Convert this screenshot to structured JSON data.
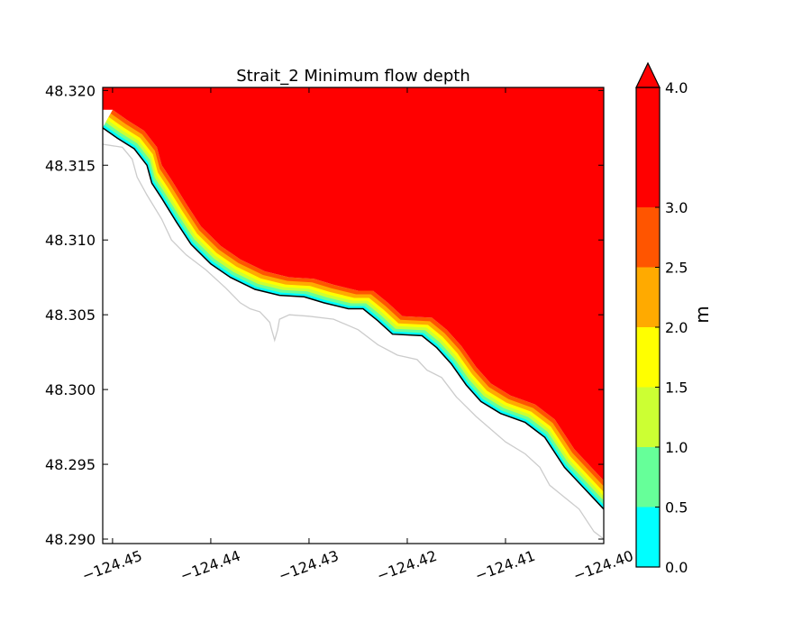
{
  "title": "Strait_2 Minimum flow depth",
  "colorbar": {
    "label": "m",
    "ticks": [
      "0.0",
      "0.5",
      "1.0",
      "1.5",
      "2.0",
      "2.5",
      "3.0",
      "4.0"
    ],
    "bins": [
      {
        "from": 0.0,
        "to": 0.5,
        "color": "#00ffff"
      },
      {
        "from": 0.5,
        "to": 1.0,
        "color": "#66ff99"
      },
      {
        "from": 1.0,
        "to": 1.5,
        "color": "#ccff33"
      },
      {
        "from": 1.5,
        "to": 2.0,
        "color": "#ffff00"
      },
      {
        "from": 2.0,
        "to": 2.5,
        "color": "#ffaa00"
      },
      {
        "from": 2.5,
        "to": 3.0,
        "color": "#ff5500"
      },
      {
        "from": 3.0,
        "to": 4.0,
        "color": "#ff0000"
      }
    ],
    "extend": "max",
    "extend_color": "#ff0000"
  },
  "colors": {
    "deep_water": "#ff0000",
    "coastline": "#000000",
    "shore_contour": "#cccccc",
    "land": "#ffffff"
  },
  "chart_data": {
    "type": "heatmap",
    "x_ticks": [
      "−124.45",
      "−124.44",
      "−124.43",
      "−124.42",
      "−124.41",
      "−124.40"
    ],
    "y_ticks": [
      "48.320",
      "48.315",
      "48.310",
      "48.305",
      "48.300",
      "48.295",
      "48.290"
    ],
    "xlim": [
      -124.451,
      -124.4
    ],
    "ylim": [
      48.2897,
      48.3202
    ],
    "x_tick_values": [
      -124.45,
      -124.44,
      -124.43,
      -124.42,
      -124.41,
      -124.4
    ],
    "y_tick_values": [
      48.32,
      48.315,
      48.31,
      48.305,
      48.3,
      48.295,
      48.29
    ],
    "field": "Minimum flow depth (m)",
    "coastline": [
      [
        -124.451,
        48.3175
      ],
      [
        -124.4495,
        48.3168
      ],
      [
        -124.4478,
        48.3161
      ],
      [
        -124.4465,
        48.315
      ],
      [
        -124.446,
        48.3138
      ],
      [
        -124.445,
        48.3128
      ],
      [
        -124.4435,
        48.3112
      ],
      [
        -124.442,
        48.3097
      ],
      [
        -124.44,
        48.3084
      ],
      [
        -124.438,
        48.3075
      ],
      [
        -124.4355,
        48.3067
      ],
      [
        -124.433,
        48.3063
      ],
      [
        -124.4305,
        48.3062
      ],
      [
        -124.4285,
        48.3058
      ],
      [
        -124.426,
        48.3054
      ],
      [
        -124.4245,
        48.3054
      ],
      [
        -124.423,
        48.3046
      ],
      [
        -124.4215,
        48.3037
      ],
      [
        -124.4185,
        48.3036
      ],
      [
        -124.417,
        48.3028
      ],
      [
        -124.4155,
        48.3017
      ],
      [
        -124.414,
        48.3003
      ],
      [
        -124.4125,
        48.2992
      ],
      [
        -124.4105,
        48.2984
      ],
      [
        -124.408,
        48.2978
      ],
      [
        -124.406,
        48.2968
      ],
      [
        -124.404,
        48.2948
      ],
      [
        -124.402,
        48.2934
      ],
      [
        -124.401,
        48.2927
      ],
      [
        -124.4,
        48.292
      ]
    ],
    "shore_contour": [
      [
        -124.451,
        48.3164
      ],
      [
        -124.449,
        48.3162
      ],
      [
        -124.448,
        48.3154
      ],
      [
        -124.4475,
        48.3142
      ],
      [
        -124.4465,
        48.313
      ],
      [
        -124.445,
        48.3114
      ],
      [
        -124.444,
        48.31
      ],
      [
        -124.4425,
        48.309
      ],
      [
        -124.4405,
        48.308
      ],
      [
        -124.4385,
        48.3068
      ],
      [
        -124.437,
        48.3058
      ],
      [
        -124.436,
        48.3054
      ],
      [
        -124.435,
        48.3052
      ],
      [
        -124.434,
        48.3045
      ],
      [
        -124.4338,
        48.304
      ],
      [
        -124.4335,
        48.3033
      ],
      [
        -124.4332,
        48.304
      ],
      [
        -124.433,
        48.3047
      ],
      [
        -124.432,
        48.305
      ],
      [
        -124.43,
        48.3049
      ],
      [
        -124.4275,
        48.3047
      ],
      [
        -124.425,
        48.304
      ],
      [
        -124.423,
        48.303
      ],
      [
        -124.421,
        48.3023
      ],
      [
        -124.419,
        48.302
      ],
      [
        -124.418,
        48.3013
      ],
      [
        -124.4165,
        48.3008
      ],
      [
        -124.415,
        48.2995
      ],
      [
        -124.413,
        48.2982
      ],
      [
        -124.41,
        48.2965
      ],
      [
        -124.408,
        48.2957
      ],
      [
        -124.4065,
        48.2948
      ],
      [
        -124.4055,
        48.2936
      ],
      [
        -124.404,
        48.2928
      ],
      [
        -124.4025,
        48.292
      ],
      [
        -124.401,
        48.2905
      ],
      [
        -124.4,
        48.29
      ]
    ],
    "contour_bands_offshore": [
      {
        "min_depth": 0.0,
        "max_depth": 0.5,
        "color": "#00ffff"
      },
      {
        "min_depth": 0.5,
        "max_depth": 1.0,
        "color": "#66ff99"
      },
      {
        "min_depth": 1.0,
        "max_depth": 1.5,
        "color": "#ccff33"
      },
      {
        "min_depth": 1.5,
        "max_depth": 2.0,
        "color": "#ffff00"
      },
      {
        "min_depth": 2.0,
        "max_depth": 2.5,
        "color": "#ffaa00"
      },
      {
        "min_depth": 2.5,
        "max_depth": 3.0,
        "color": "#ff5500"
      },
      {
        "min_depth": 3.0,
        "max_depth": 4.0,
        "color": "#ff0000"
      }
    ]
  }
}
